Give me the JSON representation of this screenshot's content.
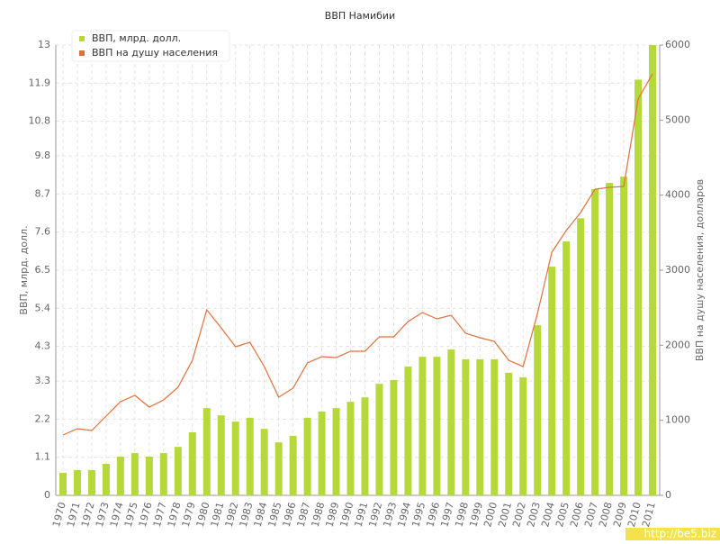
{
  "chart_data": {
    "type": "bar_line",
    "title": "ВВП Намибии",
    "categories": [
      "1970",
      "1971",
      "1972",
      "1973",
      "1974",
      "1975",
      "1976",
      "1977",
      "1978",
      "1979",
      "1980",
      "1981",
      "1982",
      "1983",
      "1984",
      "1985",
      "1986",
      "1987",
      "1988",
      "1989",
      "1990",
      "1991",
      "1992",
      "1993",
      "1994",
      "1995",
      "1996",
      "1997",
      "1998",
      "1999",
      "2000",
      "2001",
      "2002",
      "2003",
      "2004",
      "2005",
      "2006",
      "2007",
      "2008",
      "2009",
      "2010",
      "2011"
    ],
    "series": [
      {
        "name": "ВВП, млрд. долл.",
        "type": "bar",
        "color": "#b5d93a",
        "values": [
          0.65,
          0.73,
          0.73,
          0.91,
          1.12,
          1.22,
          1.12,
          1.22,
          1.4,
          1.82,
          2.52,
          2.31,
          2.13,
          2.24,
          1.92,
          1.53,
          1.72,
          2.24,
          2.42,
          2.52,
          2.7,
          2.83,
          3.22,
          3.33,
          3.72,
          4.0,
          4.0,
          4.21,
          3.93,
          3.93,
          3.93,
          3.54,
          3.41,
          4.91,
          6.6,
          7.33,
          8.0,
          8.84,
          9.02,
          9.2,
          12.0,
          13.0
        ]
      },
      {
        "name": "ВВП на душу населения",
        "type": "line",
        "axis": "y2",
        "color": "#e0703a",
        "values": [
          804,
          888,
          864,
          1056,
          1248,
          1332,
          1176,
          1272,
          1440,
          1800,
          2472,
          2232,
          1980,
          2040,
          1716,
          1308,
          1428,
          1764,
          1848,
          1836,
          1920,
          1920,
          2112,
          2112,
          2316,
          2436,
          2352,
          2400,
          2160,
          2100,
          2052,
          1800,
          1716,
          2424,
          3240,
          3528,
          3768,
          4080,
          4104,
          4116,
          5280,
          5616
        ]
      }
    ],
    "y_label": "ВВП, млрд. долл.",
    "y2_label": "ВВП на душу населения, долларов",
    "ylim": [
      0,
      13
    ],
    "yticks": [
      0,
      1.1,
      2.2,
      3.3,
      4.3,
      5.4,
      6.5,
      7.6,
      8.7,
      9.8,
      10.8,
      11.9,
      13
    ],
    "y2lim": [
      0,
      6000
    ],
    "y2ticks": [
      0,
      1000,
      2000,
      3000,
      4000,
      5000,
      6000
    ],
    "grid": true,
    "legend": "top-left",
    "watermark": "http://be5.biz"
  }
}
